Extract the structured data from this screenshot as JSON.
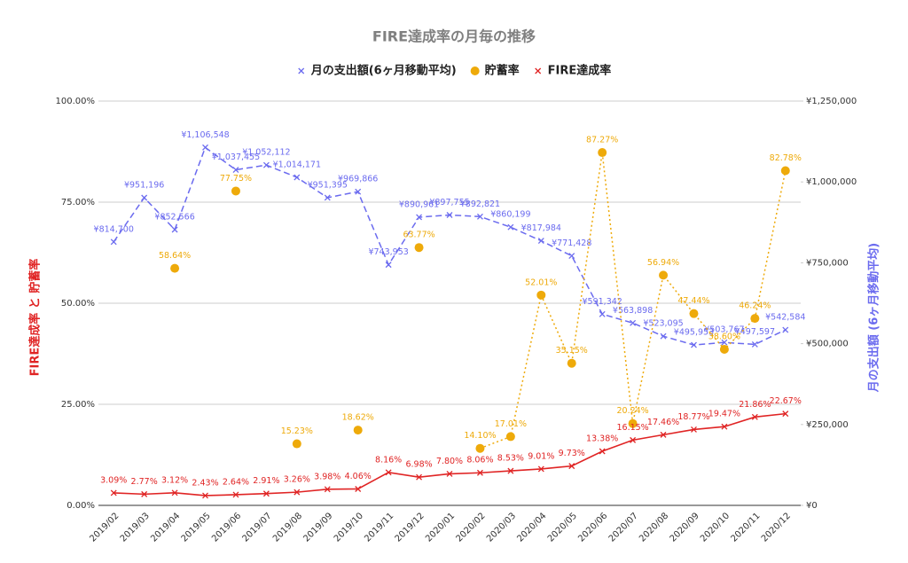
{
  "chart_data": {
    "type": "line",
    "title": "FIRE達成率の月毎の推移",
    "y_label": "FIRE達成率 と 貯蓄率",
    "y2_label": "月の支出額 (6ヶ月移動平均)",
    "categories": [
      "2019/02",
      "2019/03",
      "2019/04",
      "2019/05",
      "2019/06",
      "2019/07",
      "2019/08",
      "2019/09",
      "2019/10",
      "2019/11",
      "2019/12",
      "2020/01",
      "2020/02",
      "2020/03",
      "2020/04",
      "2020/05",
      "2020/06",
      "2020/07",
      "2020/08",
      "2020/09",
      "2020/10",
      "2020/11",
      "2020/12"
    ],
    "ylim": [
      0,
      100
    ],
    "yticks": [
      {
        "value": 0,
        "label": "0.00%"
      },
      {
        "value": 25,
        "label": "25.00%"
      },
      {
        "value": 50,
        "label": "50.00%"
      },
      {
        "value": 75,
        "label": "75.00%"
      },
      {
        "value": 100,
        "label": "100.00%"
      }
    ],
    "y2lim": [
      0,
      1250000
    ],
    "y2ticks": [
      {
        "value": 0,
        "label": "¥0"
      },
      {
        "value": 250000,
        "label": "¥250,000"
      },
      {
        "value": 500000,
        "label": "¥500,000"
      },
      {
        "value": 750000,
        "label": "¥750,000"
      },
      {
        "value": 1000000,
        "label": "¥1,000,000"
      },
      {
        "value": 1250000,
        "label": "¥1,250,000"
      }
    ],
    "grid": true,
    "legend": "top",
    "series": [
      {
        "name": "月の支出額(6ヶ月移動平均)",
        "color": "#6b6bef",
        "axis": "y2",
        "style": "dashed",
        "marker": "x",
        "values": [
          814700,
          951196,
          852566,
          1106548,
          1037455,
          1052112,
          1014171,
          951395,
          969866,
          743953,
          890961,
          897755,
          892821,
          860199,
          817984,
          771428,
          591342,
          563898,
          523095,
          495953,
          503767,
          497597,
          542584
        ],
        "value_labels": [
          "¥814,700",
          "¥951,196",
          "¥852,566",
          "¥1,106,548",
          "¥1,037,455",
          "¥1,052,112",
          "¥1,014,171",
          "¥951,395",
          "¥969,866",
          "¥743,953",
          "¥890,961",
          "¥897,755",
          "¥892,821",
          "¥860,199",
          "¥817,984",
          "¥771,428",
          "¥591,342",
          "¥563,898",
          "¥523,095",
          "¥495,953",
          "¥503,767",
          "¥497,597",
          "¥542,584"
        ]
      },
      {
        "name": "貯蓄率",
        "color": "#eeaa0a",
        "style": "dotted",
        "marker": "dot",
        "values": [
          null,
          null,
          58.64,
          null,
          77.75,
          null,
          15.23,
          null,
          18.62,
          null,
          63.77,
          null,
          14.1,
          17.01,
          52.01,
          35.15,
          87.27,
          20.24,
          56.94,
          47.44,
          38.6,
          46.24,
          82.78
        ],
        "value_labels": [
          null,
          null,
          "58.64%",
          null,
          "77.75%",
          null,
          "15.23%",
          null,
          "18.62%",
          null,
          "63.77%",
          null,
          "14.10%",
          "17.01%",
          "52.01%",
          "35.15%",
          "87.27%",
          "20.24%",
          "56.94%",
          "47.44%",
          "38.60%",
          "46.24%",
          "82.78%"
        ]
      },
      {
        "name": "FIRE達成率",
        "color": "#e02424",
        "style": "solid",
        "marker": "x",
        "values": [
          3.09,
          2.77,
          3.12,
          2.43,
          2.64,
          2.91,
          3.26,
          3.98,
          4.06,
          8.16,
          6.98,
          7.8,
          8.06,
          8.53,
          9.01,
          9.73,
          13.38,
          16.15,
          17.46,
          18.77,
          19.47,
          21.86,
          22.67
        ],
        "value_labels": [
          "3.09%",
          "2.77%",
          "3.12%",
          "2.43%",
          "2.64%",
          "2.91%",
          "3.26%",
          "3.98%",
          "4.06%",
          "8.16%",
          "6.98%",
          "7.80%",
          "8.06%",
          "8.53%",
          "9.01%",
          "9.73%",
          "13.38%",
          "16.15%",
          "17.46%",
          "18.77%",
          "19.47%",
          "21.86%",
          "22.67%"
        ]
      }
    ]
  }
}
